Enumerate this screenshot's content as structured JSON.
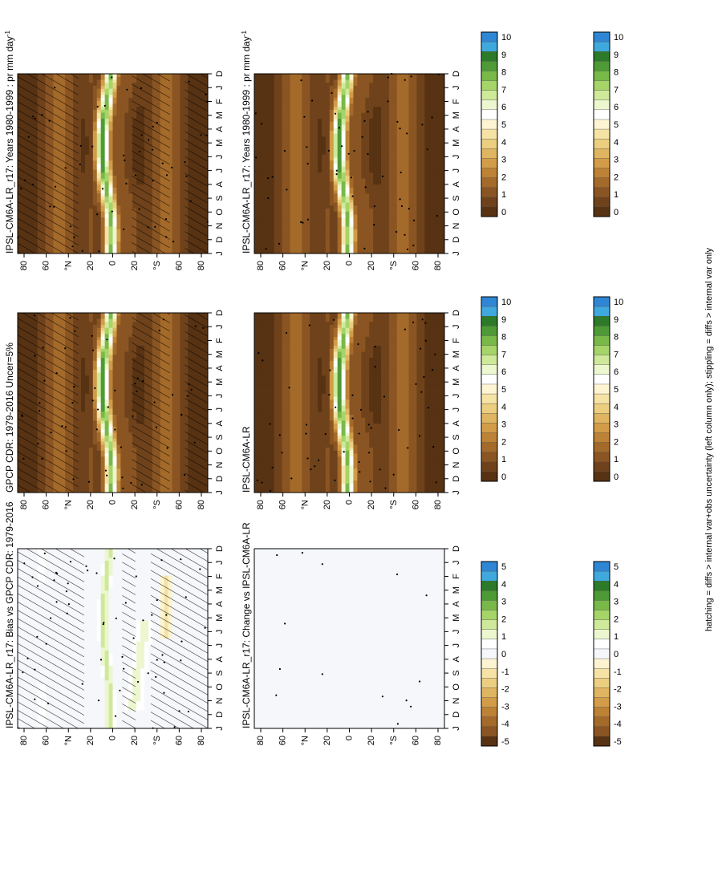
{
  "footnote": "hatching = diffs > internal var+obs uncertainty (left column only); stippling = diffs > internal var only",
  "months": [
    "D",
    "J",
    "F",
    "M",
    "A",
    "M",
    "J",
    "J",
    "A",
    "S",
    "O",
    "N",
    "D",
    "J"
  ],
  "lat_ticks": [
    "80",
    "60",
    "°N",
    "20",
    "0",
    "20",
    "°S",
    "60",
    "80"
  ],
  "abs_scale": {
    "labels": [
      "10",
      "9",
      "8",
      "7",
      "6",
      "5",
      "4",
      "3",
      "2",
      "1",
      "0"
    ],
    "colors": [
      "#2f86d4",
      "#3fa9dd",
      "#2d7a2a",
      "#4e9a36",
      "#78b949",
      "#a5d468",
      "#cfe99a",
      "#ecf6cf",
      "#ffffff",
      "#fdf4d2",
      "#f5e3a6",
      "#ebce80",
      "#dfb562",
      "#d29c48",
      "#bd8236",
      "#a46a2a",
      "#8a5522",
      "#6f421b",
      "#573213"
    ]
  },
  "diff_scale": {
    "labels": [
      "5",
      "4",
      "3",
      "2",
      "1",
      "0",
      "-1",
      "-2",
      "-3",
      "-4",
      "-5"
    ],
    "colors": [
      "#2f86d4",
      "#3fa9dd",
      "#2d7a2a",
      "#4e9a36",
      "#78b949",
      "#a5d468",
      "#cfe99a",
      "#ecf6cf",
      "#ffffff",
      "#f5f7fb",
      "#fdf4d2",
      "#f5e3a6",
      "#ebce80",
      "#dfb562",
      "#d29c48",
      "#bd8236",
      "#a46a2a",
      "#8a5522",
      "#573213"
    ]
  },
  "panels": [
    {
      "title": "IPSL-CM6A-LR_r17: Years 1980-1999 : pr mm day",
      "units_sup": "-1",
      "kind": "abs",
      "hatch": true,
      "stipple": true
    },
    {
      "title": "GPCP CDR: 1979-2016 Uncer=5%",
      "units_sup": "",
      "kind": "abs",
      "hatch": true,
      "stipple": true
    },
    {
      "title": "IPSL-CM6A-LR_r17: Bias vs GPCP CDR: 1979-2016",
      "units_sup": "",
      "kind": "bias",
      "hatch": true,
      "stipple": true
    },
    {
      "title": "IPSL-CM6A-LR_r17: Years 1980-1999 : pr mm day",
      "units_sup": "-1",
      "kind": "abs",
      "hatch": false,
      "stipple": true
    },
    {
      "title": "IPSL-CM6A-LR",
      "units_sup": "",
      "kind": "abs",
      "hatch": false,
      "stipple": true
    },
    {
      "title": "IPSL-CM6A-LR_r17: Change vs IPSL-CM6A-LR",
      "units_sup": "",
      "kind": "change",
      "hatch": false,
      "stipple": true
    }
  ],
  "chart_data": {
    "type": "heatmap",
    "x": [
      "D",
      "J",
      "F",
      "M",
      "A",
      "M",
      "J",
      "J",
      "A",
      "S",
      "O",
      "N",
      "D",
      "J"
    ],
    "y": [
      "80",
      "60",
      "°N",
      "20",
      "0",
      "20",
      "°S",
      "60",
      "80"
    ],
    "colorbar_abs": [
      "10",
      "9",
      "8",
      "7",
      "6",
      "5",
      "4",
      "3",
      "2",
      "1",
      "0"
    ],
    "colorbar_diff": [
      "5",
      "4",
      "3",
      "2",
      "1",
      "0",
      "-1",
      "-2",
      "-3",
      "-4",
      "-5"
    ],
    "layout": "2 columns x 3 rows, rotated 90 degrees"
  }
}
